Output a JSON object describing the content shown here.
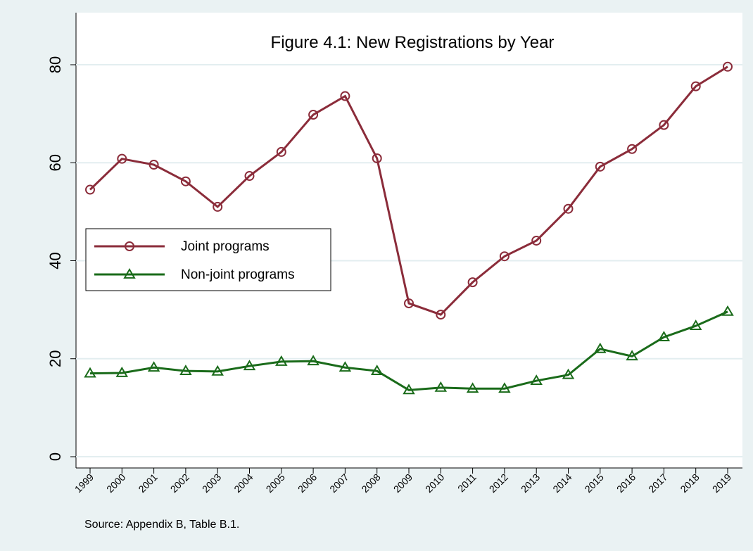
{
  "chart_data": {
    "type": "line",
    "title": "Figure 4.1: New Registrations by Year",
    "note": "Source: Appendix B, Table B.1.",
    "categories": [
      "1999",
      "2000",
      "2001",
      "2002",
      "2003",
      "2004",
      "2005",
      "2006",
      "2007",
      "2008",
      "2009",
      "2010",
      "2011",
      "2012",
      "2013",
      "2014",
      "2015",
      "2016",
      "2017",
      "2018",
      "2019"
    ],
    "series": [
      {
        "name": "Joint programs",
        "color": "#8b2c3a",
        "marker": "circle",
        "values": [
          54.5,
          60.8,
          59.6,
          56.2,
          51,
          57.3,
          62.2,
          69.8,
          73.6,
          60.9,
          31.3,
          29,
          35.6,
          40.9,
          44.1,
          50.6,
          59.2,
          62.8,
          67.7,
          75.6,
          79.6
        ]
      },
      {
        "name": "Non-joint programs",
        "color": "#1a6b1a",
        "marker": "triangle",
        "values": [
          17,
          17.1,
          18.2,
          17.5,
          17.4,
          18.5,
          19.4,
          19.5,
          18.2,
          17.5,
          13.6,
          14.1,
          13.9,
          13.9,
          15.5,
          16.7,
          22,
          20.5,
          24.4,
          26.7,
          29.6
        ]
      }
    ],
    "ylim": [
      0,
      80
    ],
    "yticks": [
      0,
      20,
      40,
      60,
      80
    ],
    "grid": true,
    "legend": "left"
  }
}
